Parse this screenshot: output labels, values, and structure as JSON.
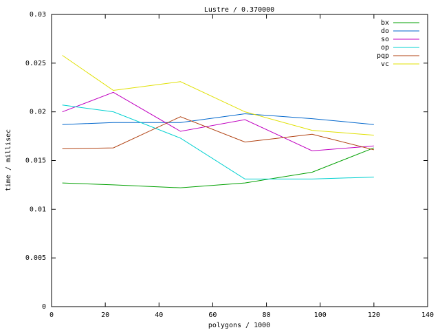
{
  "chart_data": {
    "type": "line",
    "title": "Lustre / 0.370000",
    "x_label": "polygons / 1000",
    "y_label": "time / millisec",
    "x": [
      4,
      23,
      48,
      72,
      97,
      120
    ],
    "series": [
      {
        "name": "bx",
        "color": "#00a000",
        "values": [
          0.0127,
          0.0125,
          0.0122,
          0.0127,
          0.0138,
          0.0163
        ]
      },
      {
        "name": "do",
        "color": "#0066cc",
        "values": [
          0.0187,
          0.0189,
          0.0189,
          0.0198,
          0.0193,
          0.0187
        ]
      },
      {
        "name": "so",
        "color": "#c000c0",
        "values": [
          0.02,
          0.022,
          0.018,
          0.0192,
          0.016,
          0.0165
        ]
      },
      {
        "name": "op",
        "color": "#00d0d0",
        "values": [
          0.0207,
          0.02,
          0.0173,
          0.0131,
          0.0131,
          0.0133
        ]
      },
      {
        "name": "pqp",
        "color": "#b04010",
        "values": [
          0.0162,
          0.0163,
          0.0195,
          0.0169,
          0.0177,
          0.0161
        ]
      },
      {
        "name": "vc",
        "color": "#e0e000",
        "values": [
          0.0258,
          0.0222,
          0.0231,
          0.02,
          0.0181,
          0.0176
        ]
      }
    ],
    "xlim": [
      0,
      140
    ],
    "xticks": [
      0,
      20,
      40,
      60,
      80,
      100,
      120,
      140
    ],
    "ylim": [
      0,
      0.03
    ],
    "yticks": [
      0,
      0.005,
      0.01,
      0.015,
      0.02,
      0.025,
      0.03
    ],
    "grid": false,
    "legend": "top-right"
  }
}
